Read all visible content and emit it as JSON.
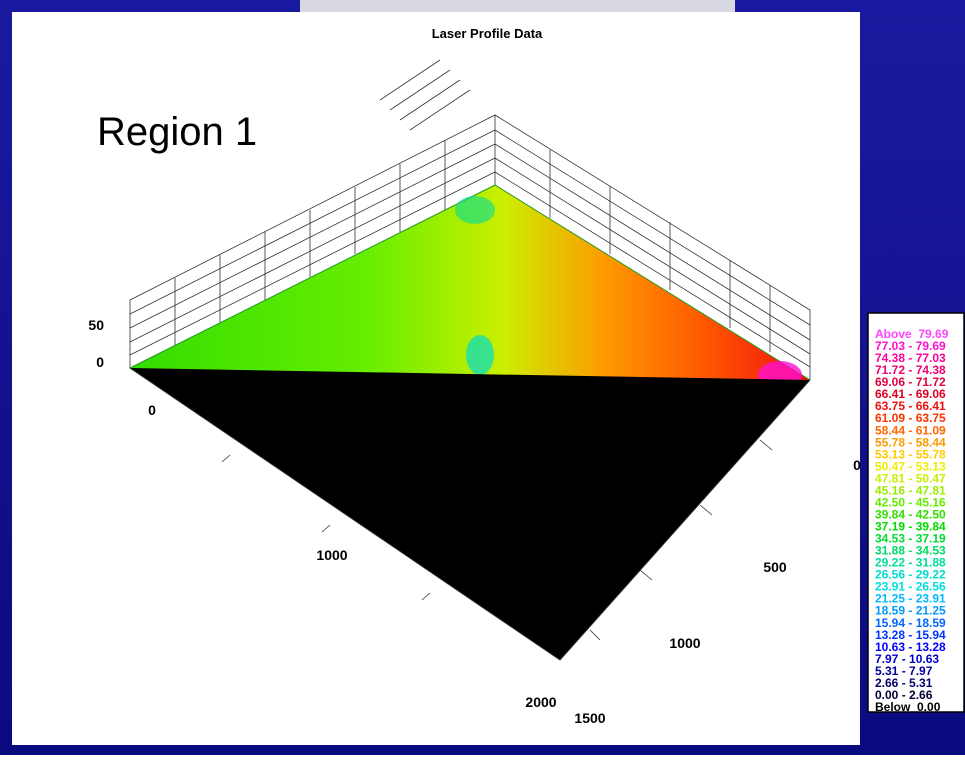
{
  "title": "Laser Profile Data",
  "annotation": "Region 1",
  "axes": {
    "z": [
      "50",
      "0"
    ],
    "x": [
      "0",
      "1000",
      "2000"
    ],
    "y": [
      "0",
      "500",
      "1000",
      "1500"
    ]
  },
  "legend": [
    {
      "label": "Above  79.69",
      "color": "#ff44ff"
    },
    {
      "label": "77.03 - 79.69",
      "color": "#ff10d0"
    },
    {
      "label": "74.38 - 77.03",
      "color": "#ff0099"
    },
    {
      "label": "71.72 - 74.38",
      "color": "#f00070"
    },
    {
      "label": "69.06 - 71.72",
      "color": "#e00040"
    },
    {
      "label": "66.41 - 69.06",
      "color": "#e00020"
    },
    {
      "label": "63.75 - 66.41",
      "color": "#ee1010"
    },
    {
      "label": "61.09 - 63.75",
      "color": "#ff3300"
    },
    {
      "label": "58.44 - 61.09",
      "color": "#ff6600"
    },
    {
      "label": "55.78 - 58.44",
      "color": "#ff9900"
    },
    {
      "label": "53.13 - 55.78",
      "color": "#ffcc00"
    },
    {
      "label": "50.47 - 53.13",
      "color": "#eeee00"
    },
    {
      "label": "47.81 - 50.47",
      "color": "#ccee00"
    },
    {
      "label": "45.16 - 47.81",
      "color": "#99ee00"
    },
    {
      "label": "42.50 - 45.16",
      "color": "#66ee00"
    },
    {
      "label": "39.84 - 42.50",
      "color": "#33dd00"
    },
    {
      "label": "37.19 - 39.84",
      "color": "#00dd00"
    },
    {
      "label": "34.53 - 37.19",
      "color": "#00dd33"
    },
    {
      "label": "31.88 - 34.53",
      "color": "#00dd66"
    },
    {
      "label": "29.22 - 31.88",
      "color": "#00dd99"
    },
    {
      "label": "26.56 - 29.22",
      "color": "#00ddcc"
    },
    {
      "label": "23.91 - 26.56",
      "color": "#00dddd"
    },
    {
      "label": "21.25 - 23.91",
      "color": "#00bbff"
    },
    {
      "label": "18.59 - 21.25",
      "color": "#0099ff"
    },
    {
      "label": "15.94 - 18.59",
      "color": "#0066ff"
    },
    {
      "label": "13.28 - 15.94",
      "color": "#0033ff"
    },
    {
      "label": "10.63 - 13.28",
      "color": "#0000ff"
    },
    {
      "label": "7.97 - 10.63",
      "color": "#0000cc"
    },
    {
      "label": "5.31 - 7.97",
      "color": "#000099"
    },
    {
      "label": "2.66 - 5.31",
      "color": "#000066"
    },
    {
      "label": "0.00 - 2.66",
      "color": "#000033"
    },
    {
      "label": "Below  0.00",
      "color": "#000000"
    }
  ]
}
